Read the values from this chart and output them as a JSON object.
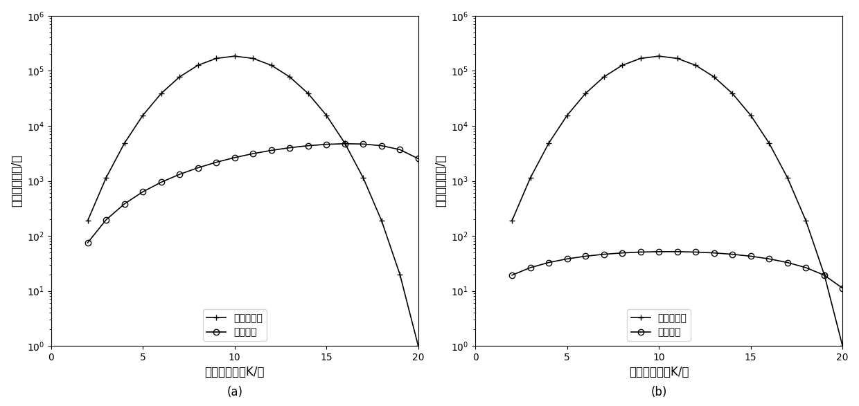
{
  "N": 20,
  "K_values": [
    2,
    3,
    4,
    5,
    6,
    7,
    8,
    9,
    10,
    11,
    12,
    13,
    14,
    15,
    16,
    17,
    18,
    19,
    20
  ],
  "panel_a": {
    "ylabel": "阵元选取次数/次",
    "xlabel": "阵元子集大小K/个",
    "label_a": "(a)",
    "legend_proposed": "本文算法",
    "legend_exhaustive": "遇历搜索法"
  },
  "panel_b": {
    "ylabel": "功率优化次数/次",
    "xlabel": "阵元子集大小K/个",
    "label_b": "(b)",
    "legend_proposed": "本文算法",
    "legend_exhaustive": "遇历搜索法"
  },
  "line_color": "#000000",
  "background_color": "#ffffff",
  "ylim": [
    1,
    1000000.0
  ],
  "xlim": [
    0,
    20
  ]
}
